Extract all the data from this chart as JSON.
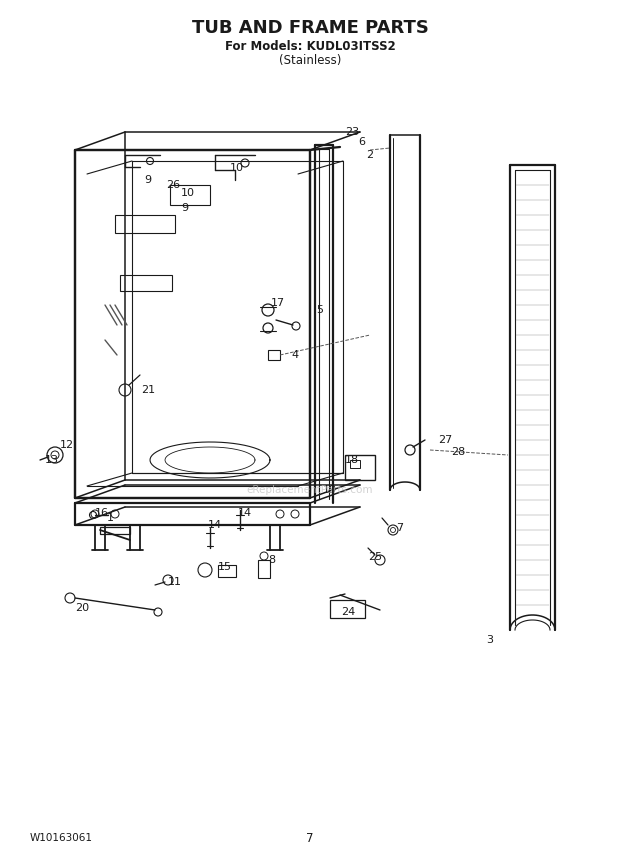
{
  "title": "TUB AND FRAME PARTS",
  "subtitle": "For Models: KUDL03ITSS2",
  "subtitle2": "(Stainless)",
  "footer_left": "W10163061",
  "footer_center": "7",
  "bg_color": "#ffffff",
  "watermark": "eReplacementParts.com",
  "lw_main": 1.1,
  "lw_thick": 1.6,
  "col": "#1a1a1a"
}
